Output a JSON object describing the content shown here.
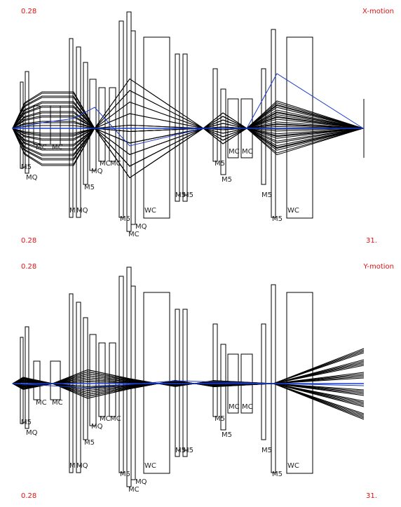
{
  "panels": [
    {
      "title": "X-motion",
      "start_top": "0.28",
      "start_bottom": "0.28",
      "end_bottom": "31.",
      "element_labels": [
        "M5",
        "MQ",
        "MC",
        "MC",
        "MI",
        "MQ",
        "M5",
        "MQ",
        "MC",
        "MC",
        "M5",
        "MQ",
        "MC",
        "WC",
        "M5",
        "M5",
        "M5",
        "M5",
        "MC",
        "MC",
        "M5",
        "M5",
        "WC"
      ]
    },
    {
      "title": "Y-motion",
      "start_top": "0.28",
      "start_bottom": "0.28",
      "end_bottom": "31.",
      "element_labels": [
        "M5",
        "MQ",
        "MC",
        "MC",
        "MI",
        "MQ",
        "M5",
        "MQ",
        "MC",
        "MC",
        "M5",
        "MQ",
        "MC",
        "WC",
        "M5",
        "M5",
        "M5",
        "M5",
        "MC",
        "MC",
        "M5",
        "M5",
        "WC"
      ]
    }
  ]
}
